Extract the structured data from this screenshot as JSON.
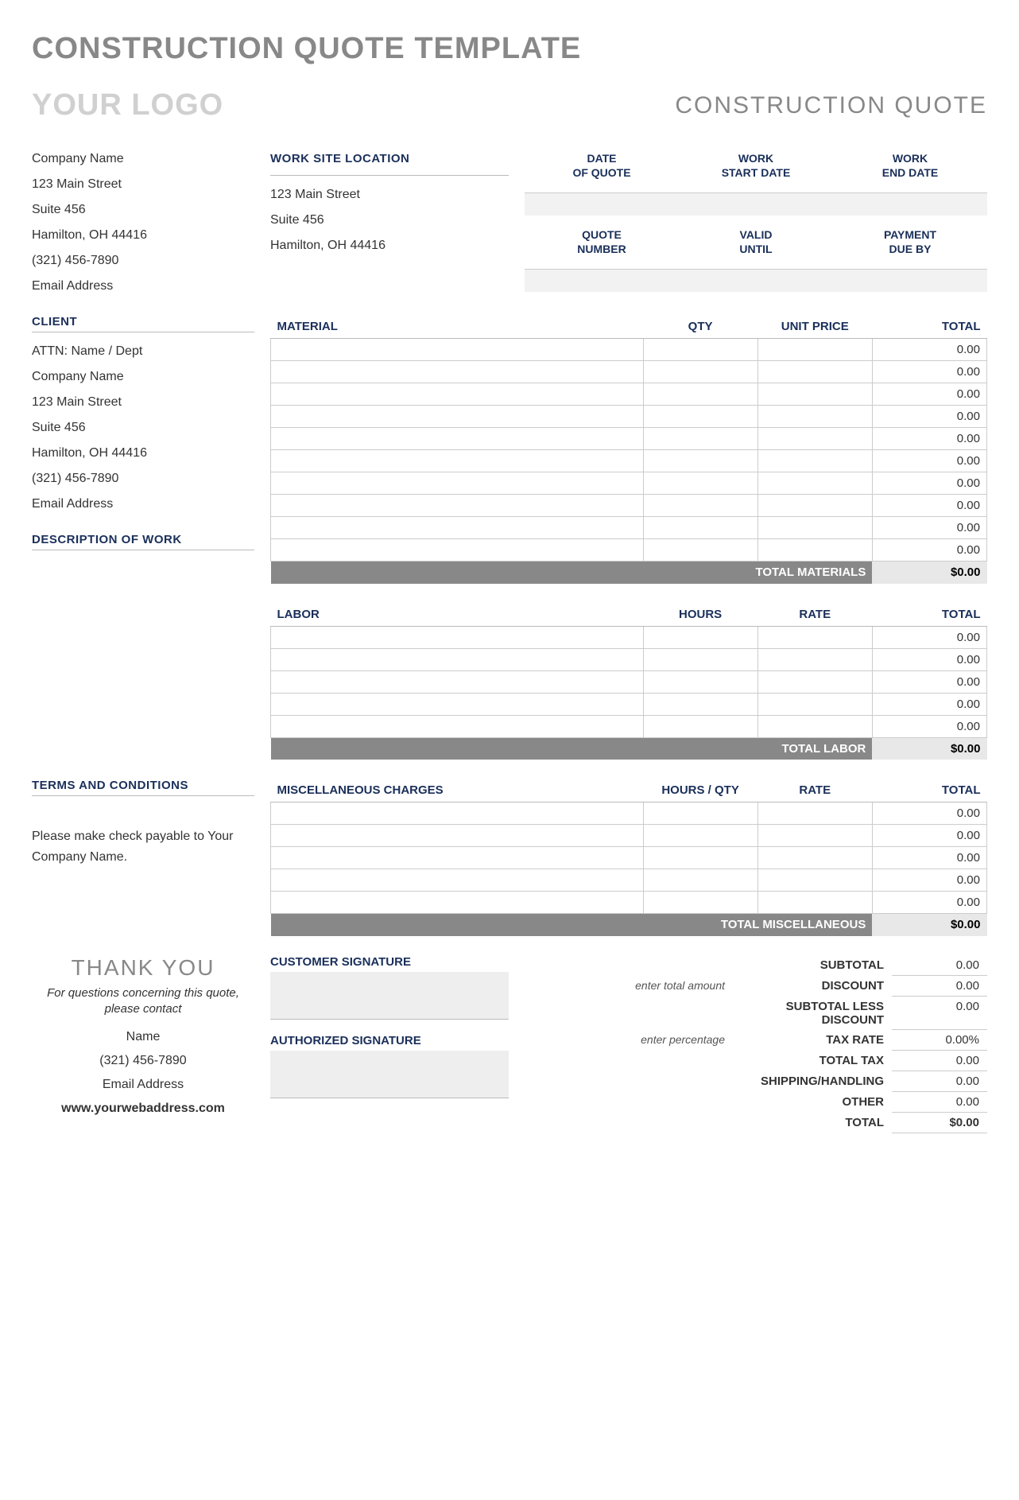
{
  "colors": {
    "accent": "#1a2f5a",
    "muted": "#888888",
    "placeholder": "#d0d0d0",
    "rowbg": "#f2f2f2",
    "border": "#cccccc"
  },
  "page_title": "CONSTRUCTION QUOTE TEMPLATE",
  "logo_text": "YOUR LOGO",
  "doc_title": "CONSTRUCTION QUOTE",
  "company": {
    "name": "Company Name",
    "addr1": "123 Main Street",
    "addr2": "Suite 456",
    "city": "Hamilton, OH  44416",
    "phone": "(321) 456-7890",
    "email": "Email Address"
  },
  "worksite": {
    "header": "WORK SITE LOCATION",
    "addr1": "123 Main Street",
    "addr2": "Suite 456",
    "city": "Hamilton, OH  44416"
  },
  "meta": {
    "headers": [
      "DATE OF QUOTE",
      "WORK START DATE",
      "WORK END DATE",
      "QUOTE NUMBER",
      "VALID UNTIL",
      "PAYMENT DUE BY"
    ],
    "values": [
      "",
      "",
      "",
      "",
      "",
      ""
    ]
  },
  "client": {
    "header": "CLIENT",
    "attn": "ATTN: Name / Dept",
    "name": "Company Name",
    "addr1": "123 Main Street",
    "addr2": "Suite 456",
    "city": "Hamilton, OH  44416",
    "phone": "(321) 456-7890",
    "email": "Email Address"
  },
  "desc_header": "DESCRIPTION OF WORK",
  "material": {
    "headers": {
      "desc": "MATERIAL",
      "a": "QTY",
      "b": "UNIT PRICE",
      "tot": "TOTAL"
    },
    "rows": [
      {
        "desc": "",
        "a": "",
        "b": "",
        "tot": "0.00"
      },
      {
        "desc": "",
        "a": "",
        "b": "",
        "tot": "0.00"
      },
      {
        "desc": "",
        "a": "",
        "b": "",
        "tot": "0.00"
      },
      {
        "desc": "",
        "a": "",
        "b": "",
        "tot": "0.00"
      },
      {
        "desc": "",
        "a": "",
        "b": "",
        "tot": "0.00"
      },
      {
        "desc": "",
        "a": "",
        "b": "",
        "tot": "0.00"
      },
      {
        "desc": "",
        "a": "",
        "b": "",
        "tot": "0.00"
      },
      {
        "desc": "",
        "a": "",
        "b": "",
        "tot": "0.00"
      },
      {
        "desc": "",
        "a": "",
        "b": "",
        "tot": "0.00"
      },
      {
        "desc": "",
        "a": "",
        "b": "",
        "tot": "0.00"
      }
    ],
    "total_label": "TOTAL MATERIALS",
    "total": "$0.00"
  },
  "labor": {
    "headers": {
      "desc": "LABOR",
      "a": "HOURS",
      "b": "RATE",
      "tot": "TOTAL"
    },
    "rows": [
      {
        "desc": "",
        "a": "",
        "b": "",
        "tot": "0.00"
      },
      {
        "desc": "",
        "a": "",
        "b": "",
        "tot": "0.00"
      },
      {
        "desc": "",
        "a": "",
        "b": "",
        "tot": "0.00"
      },
      {
        "desc": "",
        "a": "",
        "b": "",
        "tot": "0.00"
      },
      {
        "desc": "",
        "a": "",
        "b": "",
        "tot": "0.00"
      }
    ],
    "total_label": "TOTAL LABOR",
    "total": "$0.00"
  },
  "misc": {
    "headers": {
      "desc": "MISCELLANEOUS CHARGES",
      "a": "HOURS / QTY",
      "b": "RATE",
      "tot": "TOTAL"
    },
    "rows": [
      {
        "desc": "",
        "a": "",
        "b": "",
        "tot": "0.00"
      },
      {
        "desc": "",
        "a": "",
        "b": "",
        "tot": "0.00"
      },
      {
        "desc": "",
        "a": "",
        "b": "",
        "tot": "0.00"
      },
      {
        "desc": "",
        "a": "",
        "b": "",
        "tot": "0.00"
      },
      {
        "desc": "",
        "a": "",
        "b": "",
        "tot": "0.00"
      }
    ],
    "total_label": "TOTAL MISCELLANEOUS",
    "total": "$0.00"
  },
  "terms": {
    "header": "TERMS AND CONDITIONS",
    "text": "Please make check payable to Your Company Name."
  },
  "thankyou": "THANK YOU",
  "contact_note": "For questions concerning this quote, please contact",
  "contact": {
    "name": "Name",
    "phone": "(321) 456-7890",
    "email": "Email Address",
    "web": "www.yourwebaddress.com"
  },
  "sig": {
    "customer": "CUSTOMER SIGNATURE",
    "authorized": "AUTHORIZED SIGNATURE"
  },
  "summary": {
    "rows": [
      {
        "hint": "",
        "label": "SUBTOTAL",
        "value": "0.00"
      },
      {
        "hint": "enter total amount",
        "label": "DISCOUNT",
        "value": "0.00"
      },
      {
        "hint": "",
        "label": "SUBTOTAL LESS DISCOUNT",
        "value": "0.00"
      },
      {
        "hint": "enter percentage",
        "label": "TAX RATE",
        "value": "0.00%"
      },
      {
        "hint": "",
        "label": "TOTAL TAX",
        "value": "0.00"
      },
      {
        "hint": "",
        "label": "SHIPPING/HANDLING",
        "value": "0.00"
      },
      {
        "hint": "",
        "label": "OTHER",
        "value": "0.00"
      },
      {
        "hint": "",
        "label": "TOTAL",
        "value": "$0.00",
        "big": true
      }
    ]
  }
}
